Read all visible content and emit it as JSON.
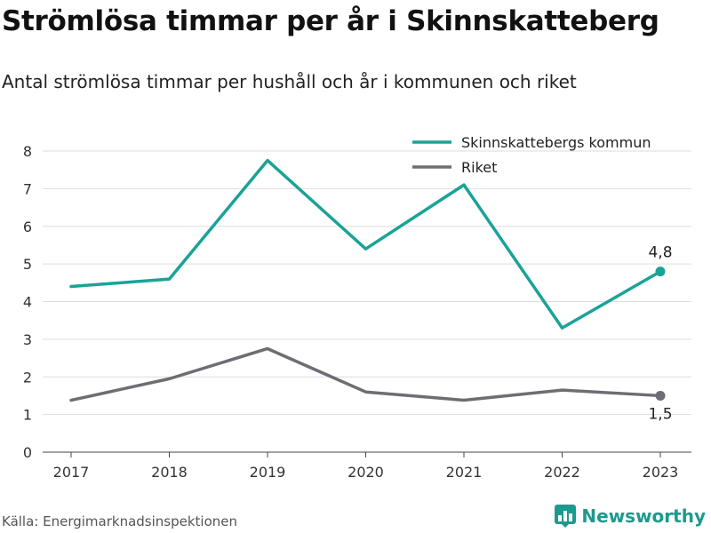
{
  "header": {
    "title": "Strömlösa timmar per år i Skinnskatteberg",
    "subtitle": "Antal strömlösa timmar per hushåll och år i kommunen och riket"
  },
  "footer": {
    "source": "Källa: Energimarknadsinspektionen",
    "brand": "Newsworthy"
  },
  "colors": {
    "kommun": "#1aa397",
    "riket": "#6e6d74",
    "grid": "#dddddd",
    "brand": "#1d9a8e"
  },
  "chart_data": {
    "type": "line",
    "x": [
      "2017",
      "2018",
      "2019",
      "2020",
      "2021",
      "2022",
      "2023"
    ],
    "series": [
      {
        "name": "Skinnskattebergs kommun",
        "values": [
          4.4,
          4.6,
          7.75,
          5.4,
          7.1,
          3.3,
          4.8
        ],
        "end_label": "4,8"
      },
      {
        "name": "Riket",
        "values": [
          1.38,
          1.95,
          2.75,
          1.6,
          1.38,
          1.65,
          1.5
        ],
        "end_label": "1,5"
      }
    ],
    "yticks": [
      "0",
      "1",
      "2",
      "3",
      "4",
      "5",
      "6",
      "7",
      "8"
    ],
    "ylim": [
      0,
      8
    ],
    "grid": true,
    "legend": "top-right"
  }
}
